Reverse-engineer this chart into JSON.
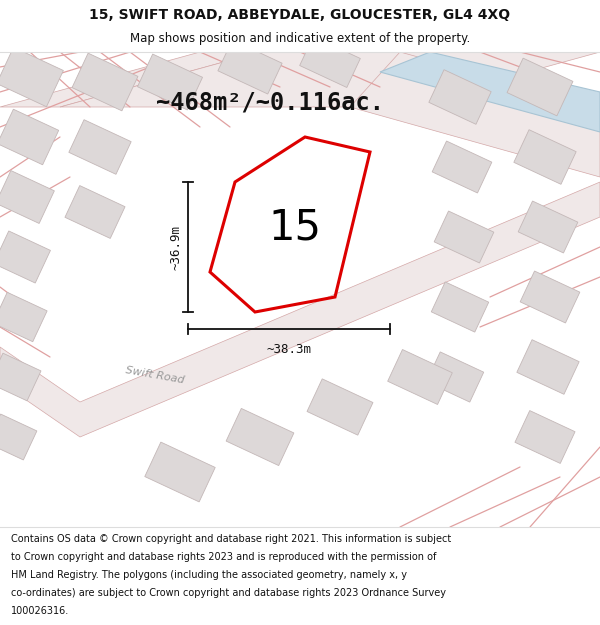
{
  "title_line1": "15, SWIFT ROAD, ABBEYDALE, GLOUCESTER, GL4 4XQ",
  "title_line2": "Map shows position and indicative extent of the property.",
  "area_text": "~468m²/~0.116ac.",
  "label_15": "15",
  "label_width": "~38.3m",
  "label_height": "~36.9m",
  "road_label": "Swift Road",
  "footer_lines": [
    "Contains OS data © Crown copyright and database right 2021. This information is subject",
    "to Crown copyright and database rights 2023 and is reproduced with the permission of",
    "HM Land Registry. The polygons (including the associated geometry, namely x, y",
    "co-ordinates) are subject to Crown copyright and database rights 2023 Ordnance Survey",
    "100026316."
  ],
  "map_bg": "#faf7f7",
  "road_band_color": "#f0e8e8",
  "road_edge_color": "#d4a8a8",
  "road_line_color": "#e0a0a0",
  "building_face": "#ddd8d8",
  "building_edge": "#c4b8b8",
  "water_color": "#c8dce8",
  "water_edge": "#a8c4d4",
  "plot_color": "#dd0000",
  "dim_color": "#111111",
  "title_color": "#111111",
  "footer_color": "#111111",
  "road_label_color": "#999999",
  "header_bg": "#ffffff",
  "footer_bg": "#ffffff",
  "area_text_color": "#111111"
}
